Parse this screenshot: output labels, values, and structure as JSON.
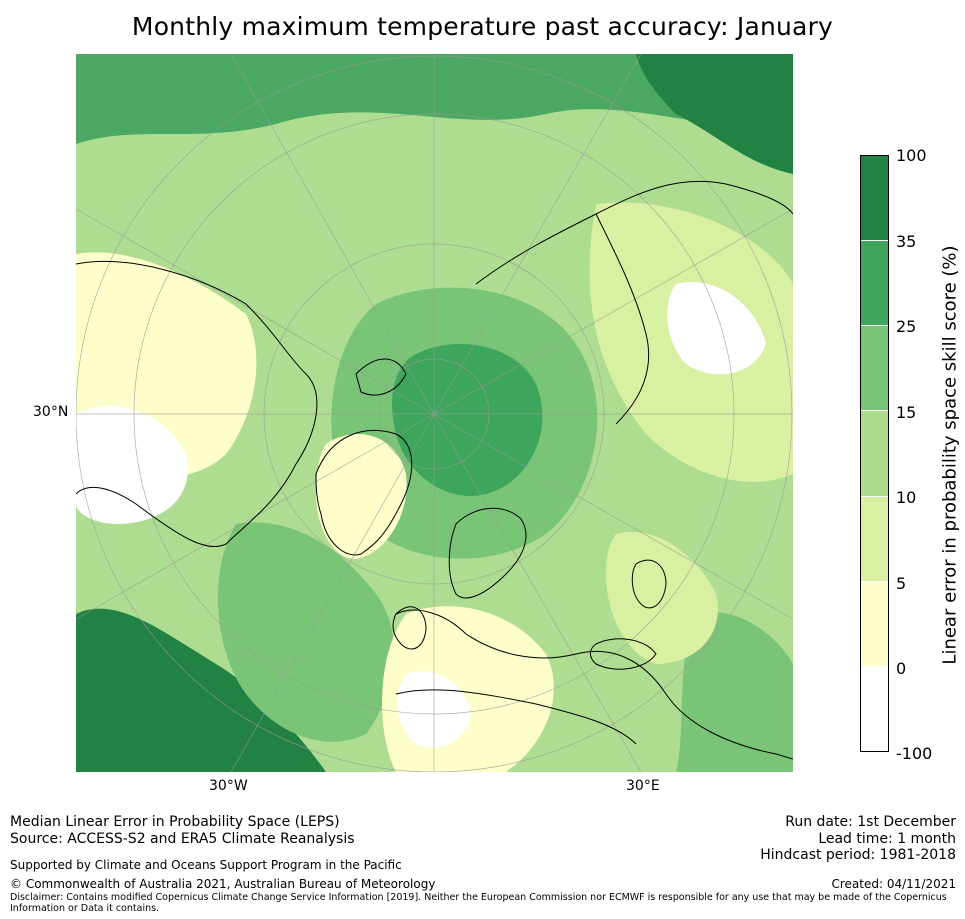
{
  "title": "Monthly maximum temperature past accuracy: January",
  "map": {
    "projection": "north polar stereographic",
    "lat_label": "30°N",
    "lon_labels": [
      "30°W",
      "30°E"
    ],
    "colors": {
      "ocean_land_base": "#aedd92",
      "graticule": "#9a9a9a",
      "coastline": "#000000"
    }
  },
  "colorbar": {
    "label": "Linear error in probability space skill score (%)",
    "ticks": [
      "100",
      "35",
      "25",
      "15",
      "10",
      "5",
      "0",
      "-100"
    ],
    "colors": [
      "#218243",
      "#3ea55c",
      "#79c477",
      "#acdb8d",
      "#d9f0a3",
      "#fefecb",
      "#ffffff"
    ]
  },
  "footer": {
    "left_line1": "Median Linear Error in Probability Space (LEPS)",
    "left_line2": "Source: ACCESS-S2 and ERA5 Climate Reanalysis",
    "support": "Supported by Climate and Oceans Support Program in the Pacific",
    "copyright": "© Commonwealth of Australia 2021, Australian Bureau of Meteorology",
    "disclaimer": "Disclaimer: Contains modified Copernicus Climate Change Service Information [2019]. Neither the European Commission nor ECMWF is responsible for any use that may be made of the Copernicus Information or Data it contains.",
    "run_date": "Run date: 1st December",
    "lead_time": "Lead time: 1 month",
    "hindcast": "Hindcast period: 1981-2018",
    "created": "Created: 04/11/2021"
  }
}
